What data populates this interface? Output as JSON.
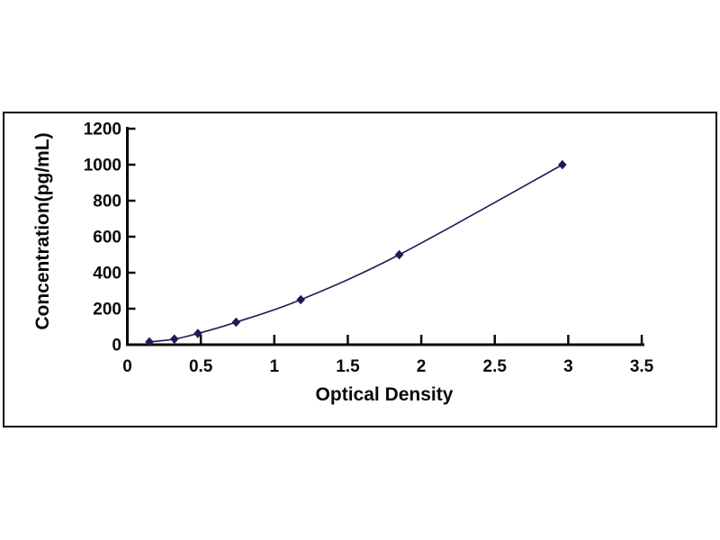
{
  "figure": {
    "background": "#ffffff",
    "frame_border_color": "#0a0a0a"
  },
  "chart_data": {
    "type": "line",
    "title": "",
    "xlabel": "Optical Density",
    "ylabel": "Concentration(pg/mL)",
    "x": [
      0.15,
      0.32,
      0.48,
      0.74,
      1.18,
      1.85,
      2.96
    ],
    "y": [
      15.6,
      31.2,
      62.5,
      125,
      250,
      500,
      1000
    ],
    "x_ticks": [
      0,
      0.5,
      1,
      1.5,
      2,
      2.5,
      3,
      3.5
    ],
    "x_tick_labels": [
      "0",
      "0.5",
      "1",
      "1.5",
      "2",
      "2.5",
      "3",
      "3.5"
    ],
    "y_ticks": [
      0,
      200,
      400,
      600,
      800,
      1000,
      1200
    ],
    "y_tick_labels": [
      "0",
      "200",
      "400",
      "600",
      "800",
      "1000",
      "1200"
    ],
    "xlim": [
      0,
      3.7
    ],
    "ylim": [
      0,
      1200
    ],
    "grid": false,
    "legend_position": "none",
    "marker": "diamond",
    "line_color": "#1f1b57",
    "marker_color": "#1f1b57",
    "axis_color": "#0a0a0a",
    "tick_label_color": "#0a0a0a"
  }
}
